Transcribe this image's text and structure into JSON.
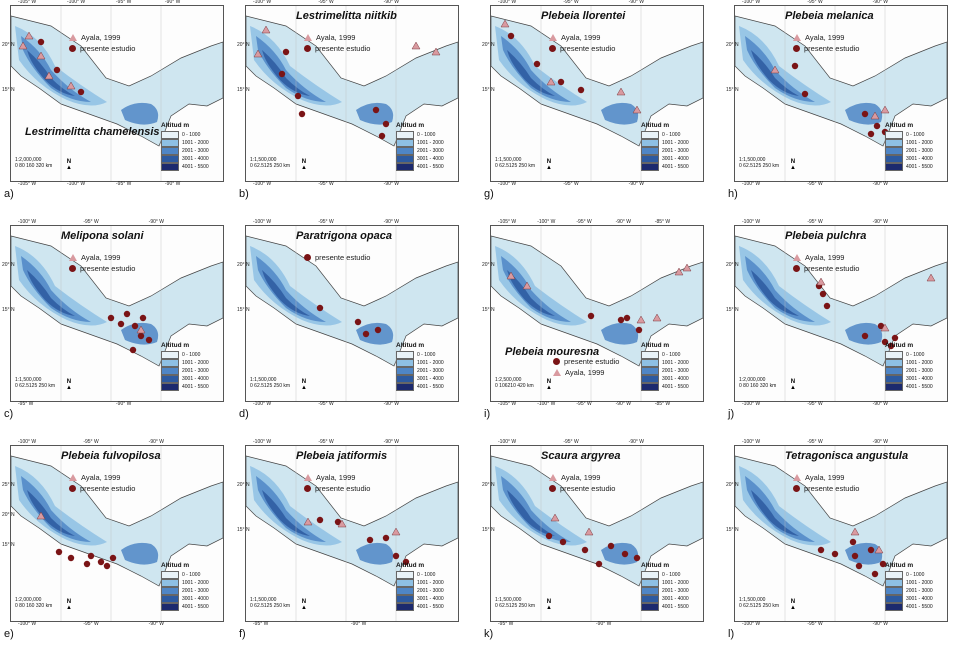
{
  "colors": {
    "land": "#cfe6f0",
    "alt1": "#e8f2f8",
    "alt2": "#8ec0e4",
    "alt3": "#4f86c6",
    "alt4": "#2d5aa0",
    "alt5": "#1c2a6e",
    "marker_ayala": "#d99aa0",
    "marker_presente": "#7a1416"
  },
  "common": {
    "legend_ayala": "Ayala, 1999",
    "legend_presente": "presente estudio",
    "altitude_title": "Altitud m",
    "altitude_ranges": [
      "0 - 1000",
      "1001 - 2000",
      "2001 - 3000",
      "3001 - 4000",
      "4001 - 5500"
    ],
    "north": "N"
  },
  "panels": [
    {
      "label": "a)",
      "species": "Lestrimelitta chamelensis",
      "legend": [
        "ayala",
        "presente"
      ],
      "scale_ratio": "1:2,000,000",
      "scale_bar": "0  80 160     320 km",
      "top_coords": [
        "-105° W",
        "-100° W",
        "-95° W",
        "-90° W"
      ],
      "bottom_coords": [
        "-105° W",
        "-100° W",
        "-95° W",
        "-90° W"
      ],
      "left_coords": [
        "20° N",
        "15° N"
      ]
    },
    {
      "label": "b)",
      "species": "Lestrimelitta niitkib",
      "legend": [
        "ayala",
        "presente"
      ],
      "scale_ratio": "1:1,500,000",
      "scale_bar": "0  62.5125      250 km",
      "top_coords": [
        "-100° W",
        "-95° W",
        "-90° W"
      ],
      "bottom_coords": [
        "-100° W",
        "-95° W",
        "-90° W"
      ],
      "left_coords": [
        "20° N",
        "15° N"
      ]
    },
    {
      "label": "g)",
      "species": "Plebeia llorentei",
      "legend": [
        "ayala",
        "presente"
      ],
      "scale_ratio": "1:1,500,000",
      "scale_bar": "0  62.5125      250 km",
      "top_coords": [
        "-100° W",
        "-95° W",
        "-90° W"
      ],
      "bottom_coords": [
        "-100° W",
        "-95° W",
        "-90° W"
      ],
      "left_coords": [
        "20° N",
        "15° N"
      ]
    },
    {
      "label": "h)",
      "species": "Plebeia melanica",
      "legend": [
        "ayala",
        "presente"
      ],
      "scale_ratio": "1:1,500,000",
      "scale_bar": "0  62.5125      250 km",
      "top_coords": [
        "-100° W",
        "-95° W",
        "-90° W"
      ],
      "bottom_coords": [
        "-100° W",
        "-95° W",
        "-90° W"
      ],
      "left_coords": [
        "20° N",
        "15° N"
      ]
    },
    {
      "label": "c)",
      "species": "Melipona solani",
      "legend": [
        "ayala",
        "presente"
      ],
      "scale_ratio": "1:1,500,000",
      "scale_bar": "0  62.5125      250 km",
      "top_coords": [
        "-100° W",
        "-95° W",
        "-90° W"
      ],
      "bottom_coords": [
        "-95° W",
        "-90° W"
      ],
      "left_coords": [
        "20° N",
        "15° N"
      ]
    },
    {
      "label": "d)",
      "species": "Paratrigona opaca",
      "legend": [
        "presente"
      ],
      "scale_ratio": "1:1,500,000",
      "scale_bar": "0  62.5125      250 km",
      "top_coords": [
        "-100° W",
        "-95° W",
        "-90° W"
      ],
      "bottom_coords": [
        "-100° W",
        "-95° W",
        "-90° W"
      ],
      "left_coords": [
        "20° N",
        "15° N"
      ]
    },
    {
      "label": "i)",
      "species": "Plebeia mouresna",
      "legend": [
        "presente",
        "ayala"
      ],
      "scale_ratio": "1:2,500,000",
      "scale_bar": "0  106210      420 km",
      "top_coords": [
        "-105° W",
        "-100° W",
        "-95° W",
        "-90° W",
        "-85° W"
      ],
      "bottom_coords": [
        "-105° W",
        "-100° W",
        "-95° W",
        "-90° W",
        "-85° W"
      ],
      "left_coords": [
        "20° N",
        "15° N"
      ]
    },
    {
      "label": "j)",
      "species": "Plebeia pulchra",
      "legend": [
        "ayala",
        "presente"
      ],
      "scale_ratio": "1:2,000,000",
      "scale_bar": "0  80 160     320 km",
      "top_coords": [
        "-100° W",
        "-95° W",
        "-90° W"
      ],
      "bottom_coords": [
        "-100° W",
        "-95° W",
        "-90° W"
      ],
      "left_coords": [
        "20° N",
        "15° N"
      ]
    },
    {
      "label": "e)",
      "species": "Plebeia fulvopilosa",
      "legend": [
        "ayala",
        "presente"
      ],
      "scale_ratio": "1:2,000,000",
      "scale_bar": "0  80 160     320 km",
      "top_coords": [
        "-100° W",
        "-95° W",
        "-90° W"
      ],
      "bottom_coords": [
        "-100° W",
        "-95° W",
        "-90° W"
      ],
      "left_coords": [
        "25° N",
        "20° N",
        "15° N"
      ]
    },
    {
      "label": "f)",
      "species": "Plebeia jatiformis",
      "legend": [
        "ayala",
        "presente"
      ],
      "scale_ratio": "1:1,500,000",
      "scale_bar": "0  62.5125      250 km",
      "top_coords": [
        "-100° W",
        "-95° W",
        "-90° W"
      ],
      "bottom_coords": [
        "-95° W",
        "-90° W"
      ],
      "left_coords": [
        "20° N",
        "15° N"
      ]
    },
    {
      "label": "k)",
      "species": "Scaura argyrea",
      "legend": [
        "ayala",
        "presente"
      ],
      "scale_ratio": "1:1,500,000",
      "scale_bar": "0  62.5125      250 km",
      "top_coords": [
        "-100° W",
        "-95° W",
        "-90° W"
      ],
      "bottom_coords": [
        "-95° W",
        "-90° W"
      ],
      "left_coords": [
        "20° N",
        "15° N"
      ]
    },
    {
      "label": "l)",
      "species": "Tetragonisca angustula",
      "legend": [
        "ayala",
        "presente"
      ],
      "scale_ratio": "1:1,500,000",
      "scale_bar": "0  62.5125      250 km",
      "top_coords": [
        "-100° W",
        "-95° W",
        "-90° W"
      ],
      "bottom_coords": [
        "-100° W",
        "-95° W",
        "-90° W"
      ],
      "left_coords": [
        "20° N",
        "15° N"
      ]
    }
  ]
}
